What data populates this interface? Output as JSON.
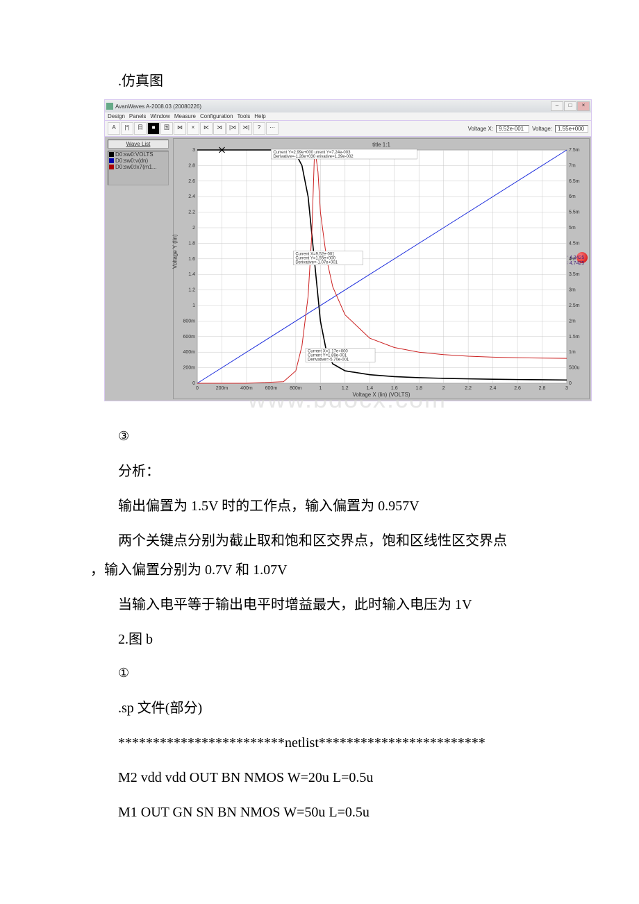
{
  "section_title": ".仿真图",
  "app": {
    "title": "AvanWaves A-2008.03 (20080226)",
    "window_buttons": {
      "min": "–",
      "max": "□",
      "close": "×"
    },
    "menus": [
      "Design",
      "Panels",
      "Window",
      "Measure",
      "Configuration",
      "Tools",
      "Help"
    ],
    "toolbar_icons": [
      "A",
      "|*|",
      "日",
      "■",
      "国",
      "⋈",
      "×",
      "⋉",
      "⋊",
      "|⋊",
      "⋊|",
      "?",
      "⋯"
    ],
    "readout": {
      "vx_label": "Voltage X:",
      "vx_value": "9.52e-001",
      "vy_label": "Voltage:",
      "vy_value": "1.55e+000"
    },
    "wave_list_title": "Wave List",
    "wave_list": [
      {
        "color": "#000000",
        "text": "D0:sw0:VOLTS"
      },
      {
        "color": "#0000aa",
        "text": "D0:sw0:v(dn)"
      },
      {
        "color": "#aa0000",
        "text": "D0:sw0:lx7(m1..."
      }
    ],
    "chart": {
      "title": "title 1:1",
      "xlabel": "Voltage X (lin) (VOLTS)",
      "ylabel_left": "Voltage Y (lin)",
      "x_min": 0,
      "x_max": 3.0,
      "x_step": 0.2,
      "yL_min": 0,
      "yL_max": 3.0,
      "yL_step": 0.2,
      "yR_ticks": [
        "0",
        "500u",
        "1m",
        "1.5m",
        "2m",
        "2.5m",
        "3m",
        "3.5m",
        "4m",
        "4.5m",
        "5m",
        "5.5m",
        "6m",
        "6.5m",
        "7m",
        "7.5m"
      ],
      "yR_max": 0.0075,
      "plot_bg": "#ffffff",
      "grid_color": "#c8c8c8",
      "annot_top1": "Current Y=2.99e+000   urrent Y=7.24e-003",
      "annot_top2": "Derivative=-1.28e+030 erivative=1.39e-002",
      "annot_mid1": "Current X=9.52e-001",
      "annot_mid2": "Current Y=1.55e+000",
      "annot_mid3": "Derivative=-1.07e+001",
      "annot_low1": "Current X=1.17e+000",
      "annot_low2": "Current Y=1.89e-001",
      "annot_low3": "Derivative=-5.70e-001",
      "cursor_badge": [
        "† 4.3425",
        "‡ 4.7425"
      ],
      "black_pts": [
        [
          0,
          3.0
        ],
        [
          0.2,
          3.0
        ],
        [
          0.4,
          3.0
        ],
        [
          0.6,
          3.0
        ],
        [
          0.72,
          2.99
        ],
        [
          0.8,
          2.95
        ],
        [
          0.85,
          2.8
        ],
        [
          0.9,
          2.4
        ],
        [
          0.95,
          1.6
        ],
        [
          1.0,
          0.8
        ],
        [
          1.05,
          0.4
        ],
        [
          1.1,
          0.25
        ],
        [
          1.2,
          0.16
        ],
        [
          1.4,
          0.11
        ],
        [
          1.6,
          0.085
        ],
        [
          1.8,
          0.072
        ],
        [
          2.0,
          0.063
        ],
        [
          2.2,
          0.057
        ],
        [
          2.4,
          0.052
        ],
        [
          2.6,
          0.048
        ],
        [
          2.8,
          0.045
        ],
        [
          3.0,
          0.042
        ]
      ],
      "red_pts_R": [
        [
          0,
          0
        ],
        [
          0.4,
          0
        ],
        [
          0.7,
          5e-05
        ],
        [
          0.8,
          0.0004
        ],
        [
          0.85,
          0.0012
        ],
        [
          0.9,
          0.0028
        ],
        [
          0.93,
          0.0048
        ],
        [
          0.95,
          0.0072
        ],
        [
          0.96,
          0.0074
        ],
        [
          0.98,
          0.0068
        ],
        [
          1.0,
          0.0055
        ],
        [
          1.05,
          0.004
        ],
        [
          1.1,
          0.0031
        ],
        [
          1.2,
          0.0022
        ],
        [
          1.4,
          0.00145
        ],
        [
          1.6,
          0.00115
        ],
        [
          1.8,
          0.001
        ],
        [
          2.0,
          0.00092
        ],
        [
          2.2,
          0.00087
        ],
        [
          2.4,
          0.00084
        ],
        [
          2.6,
          0.00082
        ],
        [
          2.8,
          0.00081
        ],
        [
          3.0,
          0.0008
        ]
      ],
      "blue_pts": [
        [
          0,
          0
        ],
        [
          3.0,
          3.0
        ]
      ],
      "marker_black_x": 0.2,
      "marker_red_x": 0.96
    }
  },
  "circled3": "③",
  "line1": "分析：",
  "line2": "输出偏置为 1.5V 时的工作点，输入偏置为 0.957V",
  "line3a": "两个关键点分别为截止取和饱和区交界点，饱和区线性区交界点",
  "line3b": "，输入偏置分别为 0.7V 和 1.07V",
  "line4": "当输入电平等于输出电平时增益最大，此时输入电压为 1V",
  "line5": "2.图 b",
  "circled1": "①",
  "line6": ".sp 文件(部分)",
  "line7": "************************netlist************************",
  "line8": "M2 vdd vdd OUT BN NMOS W=20u L=0.5u",
  "line9": "M1 OUT GN SN BN NMOS W=50u L=0.5u",
  "watermark": "www.bdocx.com"
}
